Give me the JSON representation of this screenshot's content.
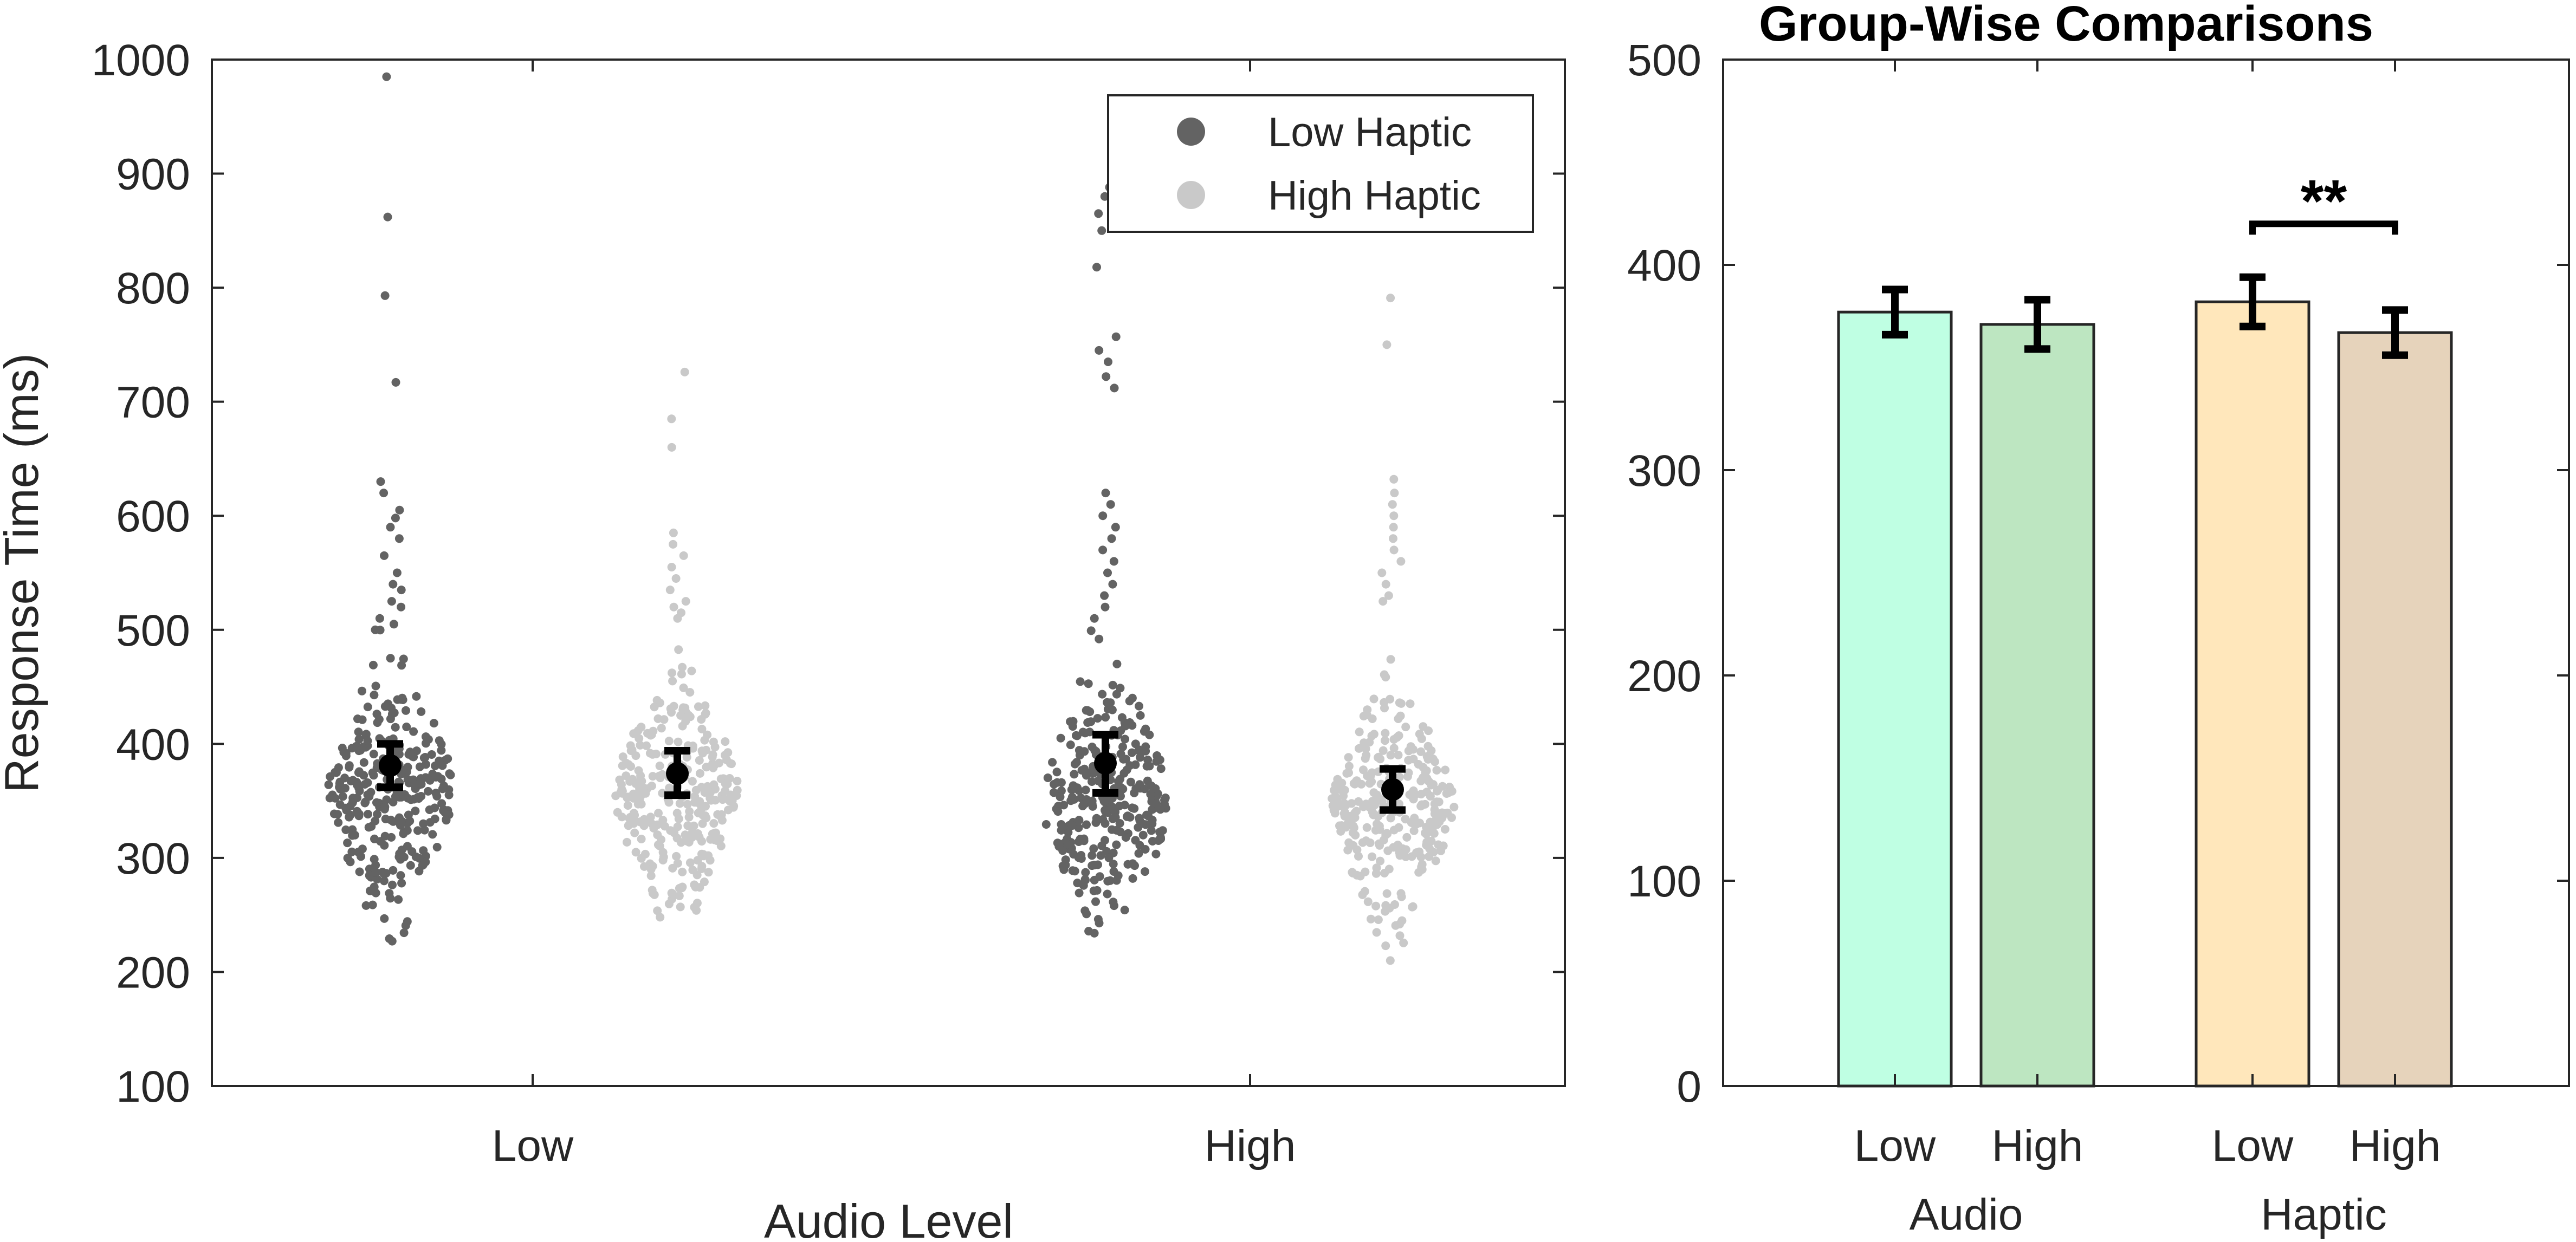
{
  "chart_data": [
    {
      "type": "scatter",
      "title": "",
      "xlabel": "Audio Level",
      "ylabel": "Response Time (ms)",
      "ylim": [
        100,
        1000
      ],
      "yticks": [
        "100",
        "200",
        "300",
        "400",
        "500",
        "600",
        "700",
        "800",
        "900",
        "1000"
      ],
      "categories": [
        "Low",
        "High"
      ],
      "legend": {
        "position": "top-right",
        "entries": [
          "Low Haptic",
          "High Haptic"
        ]
      },
      "colors": {
        "low_haptic": "#636363",
        "high_haptic": "#c9c9c9",
        "mean_marker": "#000000"
      },
      "groups": [
        {
          "audio": "Low",
          "haptic": "Low Haptic",
          "mean": 381,
          "err_low": 362,
          "err_high": 400,
          "n_points": 300,
          "median": 360,
          "spread": 55,
          "min": 227,
          "outliers": [
            985,
            862,
            793,
            717,
            630,
            620,
            605,
            598,
            590,
            580,
            565,
            550,
            540,
            535,
            525,
            520,
            510,
            505,
            500
          ]
        },
        {
          "audio": "Low",
          "haptic": "High Haptic",
          "mean": 374,
          "err_low": 355,
          "err_high": 394,
          "n_points": 300,
          "median": 355,
          "spread": 52,
          "min": 248,
          "outliers": [
            726,
            685,
            660,
            585,
            575,
            565,
            555,
            545,
            535,
            525,
            520,
            515,
            510
          ]
        },
        {
          "audio": "High",
          "haptic": "Low Haptic",
          "mean": 383,
          "err_low": 357,
          "err_high": 408,
          "n_points": 300,
          "median": 350,
          "spread": 58,
          "min": 234,
          "outliers": [
            888,
            880,
            865,
            850,
            818,
            757,
            745,
            735,
            722,
            712,
            620,
            610,
            600,
            590,
            580,
            570,
            560,
            550,
            540,
            530,
            520,
            510
          ]
        },
        {
          "audio": "High",
          "haptic": "High Haptic",
          "mean": 360,
          "err_low": 342,
          "err_high": 378,
          "n_points": 300,
          "median": 345,
          "spread": 50,
          "min": 210,
          "outliers": [
            791,
            750,
            632,
            620,
            610,
            600,
            590,
            580,
            570,
            560,
            550,
            540,
            530,
            525
          ]
        }
      ]
    },
    {
      "type": "bar",
      "title": "Group-Wise Comparisons",
      "ylim": [
        0,
        500
      ],
      "yticks": [
        "0",
        "100",
        "200",
        "300",
        "400",
        "500"
      ],
      "categories": [
        "Low",
        "High",
        "Low",
        "High"
      ],
      "group_labels": [
        "Audio",
        "Audio",
        "Haptic",
        "Haptic"
      ],
      "values": [
        377,
        371,
        382,
        367
      ],
      "err_low": [
        366,
        359,
        370,
        356
      ],
      "err_high": [
        388,
        383,
        394,
        378
      ],
      "colors": [
        "#bfffe3",
        "#bde6c1",
        "#ffe7bb",
        "#e6d3bb"
      ],
      "significance": {
        "between": [
          2,
          3
        ],
        "label": "**",
        "at_value": 420
      }
    }
  ]
}
